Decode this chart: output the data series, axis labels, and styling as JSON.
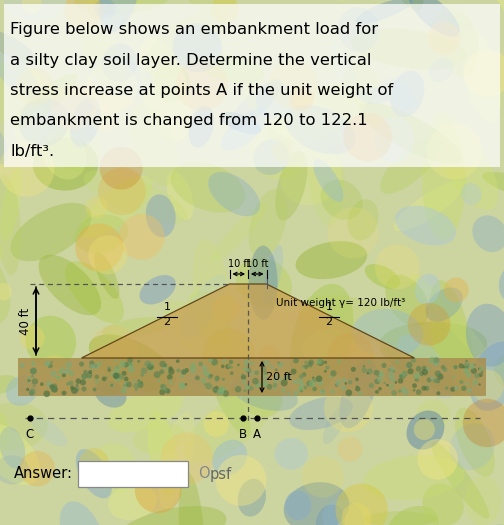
{
  "title_lines": [
    "Figure below shows an embankment load for",
    "a silty clay soil layer. Determine the vertical",
    "stress increase at points A if the unit weight of",
    "embankment is changed from 120 to 122.1",
    "lb/ft³."
  ],
  "bg_color": "#ccd4a0",
  "embankment_color": "#c8a050",
  "embankment_alpha": 0.72,
  "soil_color": "#a89050",
  "soil_dot_colors": [
    "#6a9060",
    "#5a8050",
    "#7aaa70",
    "#4a7040",
    "#80a878"
  ],
  "unit_weight_label": "Unit weight γ= 120 lb/ft³",
  "height_label": "40 ft",
  "depth_label": "20 ft",
  "answer_label": "Answer:",
  "answer_unit": "psf",
  "swirl_green": [
    "#b8d060",
    "#c8dc70",
    "#a8c848",
    "#d0e078",
    "#98b838",
    "#e0e888"
  ],
  "swirl_blue": [
    "#80a8d0",
    "#6090c0",
    "#90b8d8",
    "#4878a8",
    "#a8c8e0",
    "#7098c8"
  ],
  "swirl_orange": [
    "#e8b040",
    "#d89020",
    "#f0c060",
    "#c87820",
    "#e0a030"
  ],
  "swirl_yellow": [
    "#e8d860",
    "#f0e070",
    "#d8c840",
    "#f8e880"
  ]
}
